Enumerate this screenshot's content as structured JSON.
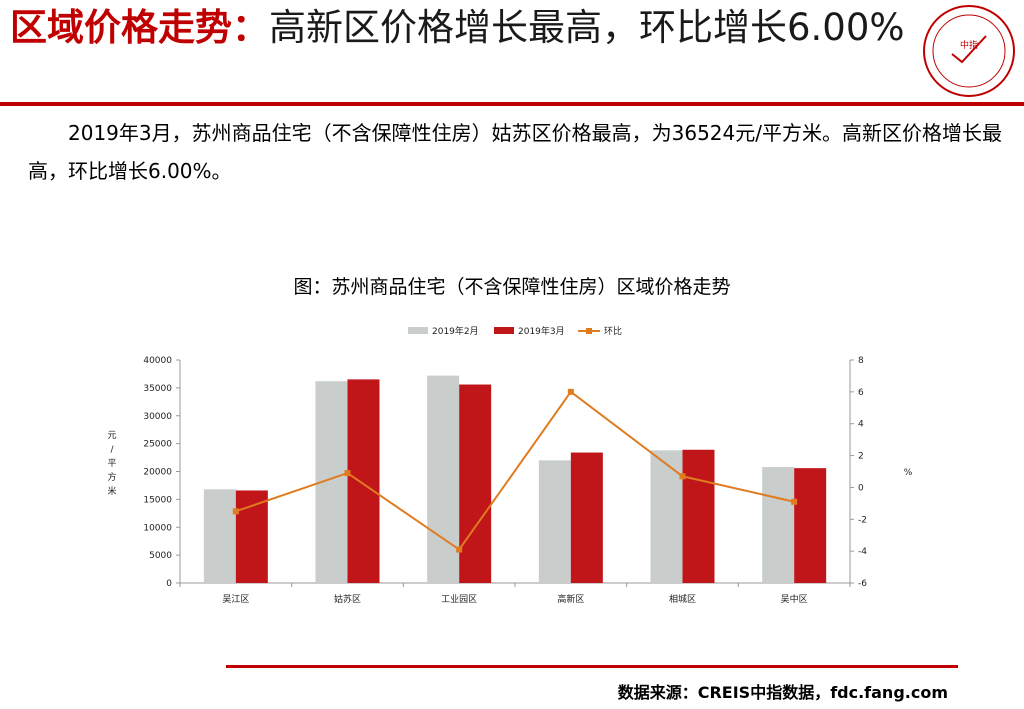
{
  "header": {
    "title_highlight": "区域价格走势：",
    "title_rest": "高新区价格增长最高，环比增长6.00%",
    "logo_text": "CHINA INDEX ACADEMY",
    "logo_center": "中指"
  },
  "paragraph": "2019年3月，苏州商品住宅（不含保障性住房）姑苏区价格最高，为36524元/平方米。高新区价格增长最高，环比增长6.00%。",
  "chart_title": "图：苏州商品住宅（不含保障性住房）区域价格走势",
  "source": "数据来源：CREIS中指数据，fdc.fang.com",
  "colors": {
    "accent": "#c00000",
    "feb": "#c9cecc",
    "mar": "#c0161a",
    "mom": "#e07b20"
  },
  "chart_data": {
    "type": "bar",
    "categories": [
      "吴江区",
      "姑苏区",
      "工业园区",
      "高新区",
      "相城区",
      "吴中区"
    ],
    "series": [
      {
        "name": "2019年2月",
        "type": "bar",
        "axis": "left",
        "values": [
          16800,
          36200,
          37200,
          22000,
          23800,
          20800
        ]
      },
      {
        "name": "2019年3月",
        "type": "bar",
        "axis": "left",
        "values": [
          16600,
          36524,
          35600,
          23400,
          23900,
          20600
        ]
      },
      {
        "name": "环比",
        "type": "line",
        "axis": "right",
        "values": [
          -1.5,
          0.9,
          -3.9,
          6.0,
          0.7,
          -0.9
        ]
      }
    ],
    "ylabel": "元/平方米",
    "y2label": "%",
    "ylim": [
      0,
      40000
    ],
    "y2lim": [
      -6,
      8
    ],
    "yticks": [
      "0",
      "5000",
      "10000",
      "15000",
      "20000",
      "25000",
      "30000",
      "35000",
      "40000"
    ],
    "y2ticks": [
      "-6",
      "-4",
      "-2",
      "0",
      "2",
      "4",
      "6",
      "8"
    ],
    "legend_position": "top",
    "grid": false
  }
}
